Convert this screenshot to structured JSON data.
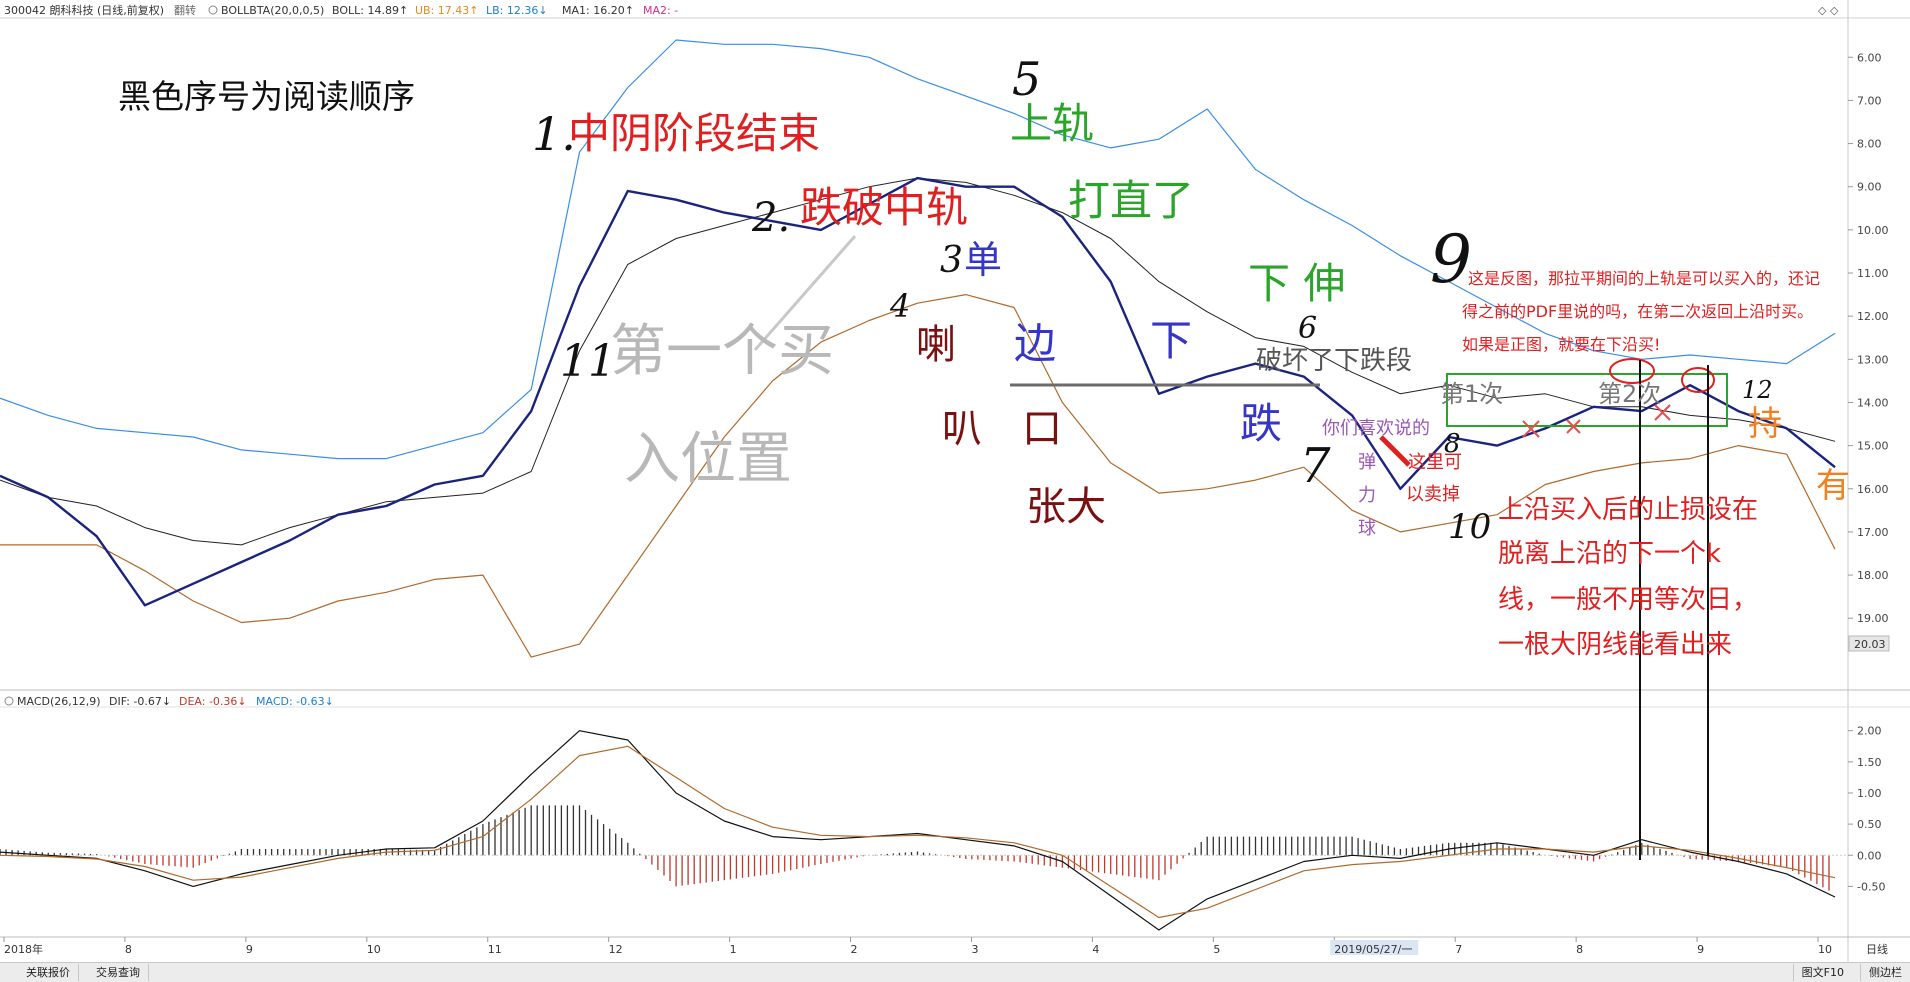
{
  "header": {
    "code_name": "300042 朗科科技 (日线,前复权)",
    "flip_label": "翻转",
    "boll_name": "BOLLBTA(20,0,0,5)",
    "boll_val": "BOLL: 14.89↑",
    "ub_val": "UB: 17.43↑",
    "lb_val": "LB: 12.36↓",
    "ma1_val": "MA1: 16.20↑",
    "ma2_val": "MA2: -",
    "win_icons": "◇ ◇"
  },
  "macd_header": {
    "name": "MACD(26,12,9)",
    "dif": "DIF: -0.67↓",
    "dea": "DEA: -0.36↓",
    "macd": "MACD: -0.63↓"
  },
  "price_axis": [
    "6.00",
    "7.00",
    "8.00",
    "9.00",
    "10.00",
    "11.00",
    "12.00",
    "13.00",
    "14.00",
    "15.00",
    "16.00",
    "17.00",
    "18.00",
    "19.00"
  ],
  "last_price_tag": "20.03",
  "macd_axis": [
    "2.00",
    "1.50",
    "1.00",
    "0.50",
    "0.00",
    "-0.50"
  ],
  "time_axis": [
    "2018年",
    "8",
    "9",
    "10",
    "11",
    "12",
    "1",
    "2",
    "3",
    "4",
    "5",
    "2019/05/27/一",
    "7",
    "8",
    "9",
    "10"
  ],
  "period_label": "日线",
  "annotations": {
    "a_read_order": "黑色序号为阅读顺序",
    "a_1": "1.",
    "a_zhongyin": "中阴阶段结束",
    "a_2": "2.",
    "a_diepo": "跌破中轨",
    "a_3": "3",
    "a_dan": "单",
    "a_bian": "边",
    "a_xia": "下",
    "a_4": "4",
    "a_la": "喇",
    "a_ba": "叭",
    "a_kou": "口",
    "a_zhangda": "张大",
    "a_5": "5",
    "a_shanggui": "上轨",
    "a_dazhi": "打直了",
    "a_xiashen": "下 伸",
    "a_6": "6",
    "a_pohuai": "破坏了下跌段",
    "a_die": "跌",
    "a_7": "7",
    "a_11": "11",
    "a_diyige": "第一个买",
    "a_ruwei": "入位置",
    "a_nimen": "你们喜欢说的",
    "a_dan2": "弹",
    "a_li": "力",
    "a_qiu": "球",
    "a_zheli": "这里可",
    "a_yimai": "以卖掉",
    "a_8": "8",
    "a_9": "9",
    "a_note1": "这是反图，那拉平期间的上轨是可以买入的，还记",
    "a_note2": "得之前的PDF里说的吗，在第二次返回上沿时买。",
    "a_note3": "如果是正图，就要在下沿买!",
    "a_di1ci": "第1次",
    "a_di2ci": "第2次",
    "a_12": "12",
    "a_chi": "持",
    "a_you": "有",
    "a_10": "10",
    "a_stop1": "上沿买入后的止损设在",
    "a_stop2": "脱离上沿的下一个k",
    "a_stop3": "线，一般不用等次日，",
    "a_stop4": "一根大阴线能看出来"
  },
  "bottom_bar": {
    "btn1": "关联报价",
    "btn2": "交易查询",
    "btn_f10": "图文F10",
    "btn_side": "侧边栏"
  },
  "colors": {
    "price_line": "#1a237e",
    "ub_line": "#3a8ee6",
    "lb_line": "#b06a2c",
    "mid_line": "#222222",
    "macd_pos": "#333333",
    "macd_neg": "#c0392b",
    "annot_red": "#e02020",
    "annot_green": "#2aa52a",
    "annot_blue": "#3535c8",
    "annot_dark_red": "#7a1010",
    "annot_gray": "#b8b8b8",
    "annot_purple": "#9b59b6",
    "annot_orange": "#f08020"
  },
  "chart_data": {
    "type": "line",
    "title": "300042 朗科科技 (日线,前复权)",
    "price_axis_range": [
      5.6,
      20.2
    ],
    "price_axis_inverted": true,
    "macd_axis_range": [
      -1.2,
      2.3
    ],
    "grid": false,
    "series": [
      {
        "name": "BOLL",
        "values": [
          15.8,
          16.2,
          16.4,
          16.9,
          17.2,
          17.3,
          16.9,
          16.6,
          16.3,
          16.2,
          16.1,
          15.6,
          12.8,
          10.8,
          10.2,
          9.9,
          9.6,
          9.3,
          9.0,
          8.8,
          8.9,
          9.2,
          9.6,
          10.2,
          11.2,
          11.9,
          12.5,
          12.7,
          13.3,
          13.8,
          13.6,
          13.9,
          13.8,
          14.1,
          14.1,
          14.3,
          14.4,
          14.6,
          14.9
        ]
      },
      {
        "name": "UB",
        "values": [
          13.9,
          14.3,
          14.6,
          14.7,
          14.8,
          15.1,
          15.2,
          15.3,
          15.3,
          15.0,
          14.7,
          13.7,
          8.2,
          6.7,
          5.6,
          5.7,
          5.7,
          5.8,
          6.0,
          6.5,
          6.9,
          7.3,
          7.8,
          8.1,
          7.9,
          7.2,
          8.6,
          9.3,
          9.9,
          10.6,
          11.2,
          11.8,
          12.4,
          12.8,
          13.0,
          12.9,
          13.0,
          13.1,
          12.4
        ]
      },
      {
        "name": "LB",
        "values": [
          17.3,
          17.3,
          17.3,
          17.9,
          18.6,
          19.1,
          19.0,
          18.6,
          18.4,
          18.1,
          18.0,
          19.9,
          19.6,
          18.0,
          16.4,
          14.8,
          13.5,
          12.6,
          12.1,
          11.7,
          11.5,
          11.8,
          14.0,
          15.4,
          16.1,
          16.0,
          15.8,
          15.5,
          16.5,
          17.0,
          16.8,
          16.6,
          15.9,
          15.6,
          15.4,
          15.3,
          15.0,
          15.2,
          17.4
        ]
      },
      {
        "name": "MA1",
        "values": [
          15.7,
          16.2,
          17.1,
          18.7,
          18.2,
          17.7,
          17.2,
          16.6,
          16.4,
          15.9,
          15.7,
          14.2,
          11.3,
          9.1,
          9.3,
          9.6,
          9.8,
          10.0,
          9.4,
          8.8,
          9.0,
          9.0,
          9.7,
          11.2,
          13.8,
          13.4,
          13.1,
          13.4,
          14.3,
          16.0,
          14.8,
          15.0,
          14.6,
          14.1,
          14.2,
          13.6,
          14.2,
          14.6,
          15.5
        ]
      },
      {
        "name": "DIF",
        "values": [
          0.05,
          0.0,
          -0.05,
          -0.25,
          -0.5,
          -0.3,
          -0.15,
          0.0,
          0.1,
          0.12,
          0.55,
          1.3,
          2.0,
          1.85,
          1.0,
          0.55,
          0.3,
          0.25,
          0.3,
          0.35,
          0.25,
          0.15,
          -0.1,
          -0.65,
          -1.2,
          -0.7,
          -0.4,
          -0.1,
          0.0,
          -0.05,
          0.1,
          0.2,
          0.1,
          0.0,
          0.25,
          0.05,
          -0.1,
          -0.3,
          -0.67
        ]
      },
      {
        "name": "DEA",
        "values": [
          0.0,
          -0.02,
          -0.06,
          -0.18,
          -0.4,
          -0.35,
          -0.2,
          -0.05,
          0.05,
          0.08,
          0.3,
          0.9,
          1.6,
          1.75,
          1.25,
          0.75,
          0.45,
          0.32,
          0.3,
          0.32,
          0.28,
          0.2,
          0.0,
          -0.5,
          -1.0,
          -0.85,
          -0.55,
          -0.25,
          -0.15,
          -0.1,
          0.0,
          0.1,
          0.1,
          0.05,
          0.15,
          0.08,
          -0.05,
          -0.2,
          -0.36
        ]
      }
    ]
  }
}
